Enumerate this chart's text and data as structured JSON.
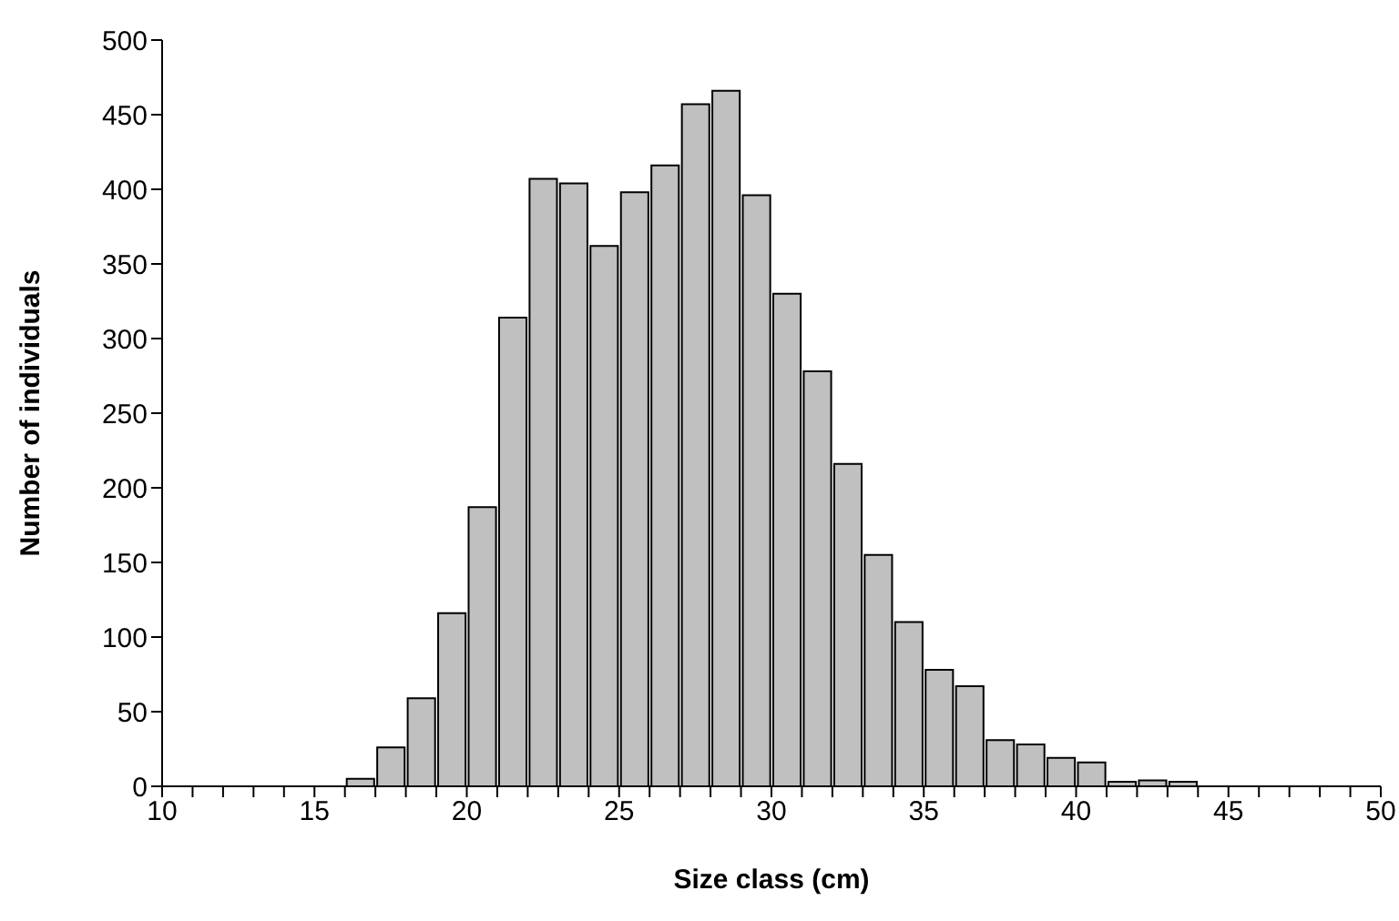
{
  "chart_data": {
    "type": "histogram",
    "xlabel": "Size class (cm)",
    "ylabel": "Number of individuals",
    "bins": [
      10,
      11,
      12,
      13,
      14,
      15,
      16,
      17,
      18,
      19,
      20,
      21,
      22,
      23,
      24,
      25,
      26,
      27,
      28,
      29,
      30,
      31,
      32,
      33,
      34,
      35,
      36,
      37,
      38,
      39,
      40,
      41,
      42,
      43,
      44,
      45,
      46,
      47,
      48,
      49,
      50
    ],
    "values": [
      0,
      0,
      0,
      0,
      0,
      null,
      5,
      26,
      59,
      116,
      187,
      314,
      407,
      404,
      362,
      398,
      416,
      457,
      466,
      396,
      330,
      278,
      216,
      155,
      110,
      78,
      67,
      31,
      28,
      19,
      16,
      3,
      4,
      3,
      0,
      null,
      0,
      0,
      null,
      0
    ],
    "color": "#c0c0c0",
    "xlim": [
      10,
      50
    ],
    "xticks": [
      10,
      {
        "value": 11,
        "label": null
      },
      {
        "value": 12,
        "label": null
      },
      {
        "value": 13,
        "label": null
      },
      {
        "value": 14,
        "label": null
      },
      15,
      {
        "value": 16,
        "label": null
      },
      {
        "value": 17,
        "label": null
      },
      {
        "value": 18,
        "label": null
      },
      {
        "value": 19,
        "label": null
      },
      20,
      {
        "value": 21,
        "label": null
      },
      {
        "value": 22,
        "label": null
      },
      {
        "value": 23,
        "label": null
      },
      {
        "value": 24,
        "label": null
      },
      25,
      {
        "value": 26,
        "label": null
      },
      {
        "value": 27,
        "label": null
      },
      {
        "value": 28,
        "label": null
      },
      {
        "value": 29,
        "label": null
      },
      30,
      {
        "value": 31,
        "label": null
      },
      {
        "value": 32,
        "label": null
      },
      {
        "value": 33,
        "label": null
      },
      {
        "value": 34,
        "label": null
      },
      35,
      {
        "value": 36,
        "label": null
      },
      {
        "value": 37,
        "label": null
      },
      {
        "value": 38,
        "label": null
      },
      {
        "value": 39,
        "label": null
      },
      40,
      {
        "value": 41,
        "label": null
      },
      {
        "value": 42,
        "label": null
      },
      {
        "value": 43,
        "label": null
      },
      {
        "value": 44,
        "label": null
      },
      45,
      {
        "value": 46,
        "label": null
      },
      {
        "value": 47,
        "label": null
      },
      {
        "value": 48,
        "label": null
      },
      {
        "value": 49,
        "label": null
      },
      50
    ],
    "ylim": [
      0,
      500
    ],
    "yticks": [
      0,
      50,
      100,
      150,
      200,
      250,
      300,
      350,
      400,
      450,
      500
    ],
    "grid": false,
    "legend": false
  }
}
